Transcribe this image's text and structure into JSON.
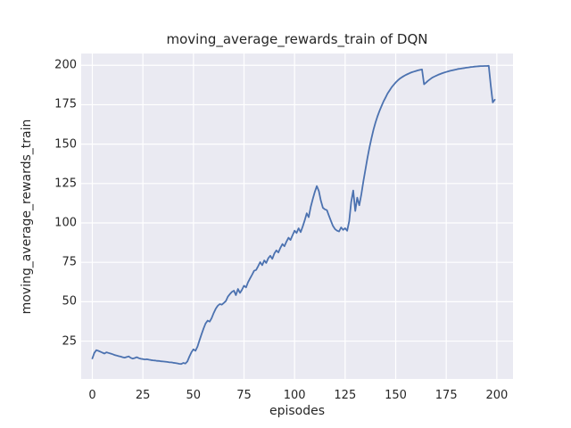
{
  "figure": {
    "title": "moving_average_rewards_train of DQN",
    "xlabel": "episodes",
    "ylabel": "moving_average_rewards_train"
  },
  "chart_data": {
    "type": "line",
    "title": "moving_average_rewards_train of DQN",
    "xlabel": "episodes",
    "ylabel": "moving_average_rewards_train",
    "grid": true,
    "legend_position": "none",
    "xticks": [
      0,
      25,
      50,
      75,
      100,
      125,
      150,
      175,
      200
    ],
    "yticks": [
      25,
      50,
      75,
      100,
      125,
      150,
      175,
      200
    ],
    "xlim": [
      -5.5,
      208
    ],
    "ylim": [
      1,
      207.5
    ],
    "style": {
      "line_color": "#4c72b0",
      "line_width": 1.8,
      "plot_background": "#eaeaf2",
      "grid_color": "#ffffff",
      "figure_background": "#ffffff",
      "text_color": "#262626"
    },
    "series": [
      {
        "name": "moving_average_rewards_train of DQN",
        "x_start": 0,
        "x_step": 1,
        "values": [
          14,
          17.5,
          19.3,
          18.8,
          18.3,
          17.7,
          17.1,
          17.9,
          17.5,
          17.1,
          16.7,
          16.2,
          15.9,
          15.5,
          15.2,
          14.8,
          14.5,
          14.9,
          15.3,
          14.4,
          13.9,
          14.3,
          14.8,
          14.2,
          13.8,
          13.6,
          13.4,
          13.5,
          13.2,
          13.0,
          12.8,
          12.7,
          12.5,
          12.4,
          12.2,
          12.1,
          12.0,
          11.8,
          11.6,
          11.5,
          11.3,
          11.1,
          10.9,
          10.6,
          10.5,
          11.2,
          10.8,
          12.1,
          15.2,
          18.0,
          19.8,
          18.9,
          21.6,
          25.5,
          29.4,
          33.1,
          36.2,
          38.0,
          37.4,
          39.6,
          42.8,
          45.5,
          47.4,
          48.5,
          48.1,
          49.2,
          50.4,
          53.2,
          54.8,
          56.2,
          57.0,
          54.2,
          58.1,
          55.6,
          57.6,
          60.2,
          59.1,
          62.3,
          64.8,
          67.2,
          69.6,
          70.2,
          72.6,
          75.1,
          73.2,
          76.2,
          74.6,
          77.6,
          79.2,
          77.2,
          80.6,
          82.6,
          81.2,
          84.2,
          86.6,
          85.2,
          88.2,
          90.6,
          89.2,
          92.2,
          95.1,
          93.6,
          96.6,
          94.2,
          97.6,
          101.6,
          106.1,
          103.6,
          110.2,
          115.2,
          119.6,
          123.4,
          120.2,
          114.2,
          109.6,
          108.6,
          108.1,
          104.6,
          101.2,
          98.1,
          96.1,
          95.1,
          94.6,
          97.1,
          95.6,
          96.6,
          95.0,
          101.1,
          113.2,
          120.6,
          107.6,
          116.1,
          111.2,
          118.1,
          126.1,
          133.6,
          141.1,
          147.6,
          153.6,
          159.1,
          163.6,
          167.6,
          171.1,
          174.1,
          177.1,
          179.6,
          182.1,
          184.1,
          186.1,
          187.6,
          189.1,
          190.4,
          191.5,
          192.4,
          193.2,
          193.9,
          194.5,
          195.1,
          195.6,
          196.0,
          196.4,
          196.8,
          197.1,
          197.4,
          188.0,
          189.0,
          190.2,
          191.2,
          192.1,
          192.8,
          193.4,
          194.0,
          194.5,
          195.0,
          195.4,
          195.8,
          196.2,
          196.5,
          196.8,
          197.1,
          197.4,
          197.7,
          197.9,
          198.1,
          198.3,
          198.5,
          198.7,
          198.9,
          199.0,
          199.2,
          199.3,
          199.4,
          199.5,
          199.5,
          199.6,
          199.6,
          199.7,
          187.0,
          176.5,
          178.2
        ]
      }
    ]
  }
}
